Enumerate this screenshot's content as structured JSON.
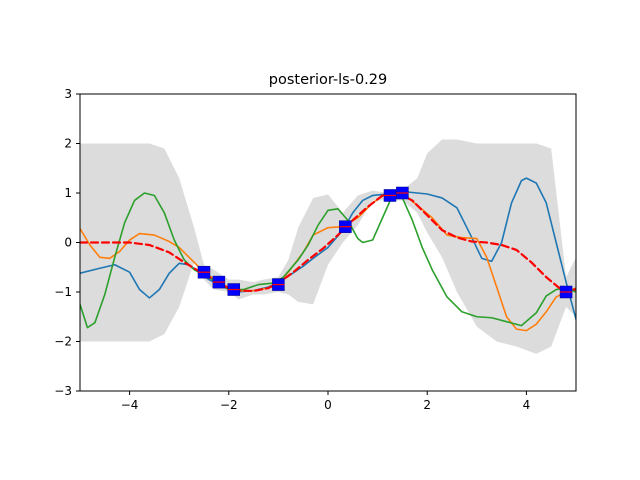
{
  "chart_data": {
    "type": "line",
    "title": "posterior-ls-0.29",
    "xlabel": "",
    "ylabel": "",
    "xlim": [
      -5,
      5
    ],
    "ylim": [
      -3,
      3
    ],
    "x_ticks": [
      -4,
      -2,
      0,
      2,
      4
    ],
    "x_tick_labels": [
      "−4",
      "−2",
      "0",
      "2",
      "4"
    ],
    "y_ticks": [
      -3,
      -2,
      -1,
      0,
      1,
      2,
      3
    ],
    "y_tick_labels": [
      "−3",
      "−2",
      "−1",
      "0",
      "1",
      "2",
      "3"
    ],
    "grid": false,
    "legend": "none",
    "confidence_band": {
      "color": "#dcdcdc",
      "x": [
        -5,
        -4.5,
        -4,
        -3.6,
        -3.3,
        -3.0,
        -2.7,
        -2.5,
        -2.3,
        -2.0,
        -1.8,
        -1.5,
        -1.3,
        -1.0,
        -0.8,
        -0.6,
        -0.3,
        0.0,
        0.3,
        0.6,
        0.9,
        1.2,
        1.5,
        1.8,
        2.0,
        2.3,
        2.6,
        3.0,
        3.4,
        3.8,
        4.2,
        4.5,
        4.8,
        5.0
      ],
      "upper": [
        2.0,
        2.0,
        2.0,
        2.0,
        1.9,
        1.3,
        0.3,
        -0.45,
        -0.55,
        -0.75,
        -0.75,
        -0.8,
        -0.75,
        -0.7,
        -0.35,
        0.3,
        0.9,
        0.97,
        0.6,
        0.95,
        1.05,
        1.0,
        1.05,
        1.3,
        1.8,
        2.08,
        2.08,
        2.0,
        2.0,
        2.0,
        2.0,
        1.9,
        -0.7,
        -0.3
      ],
      "lower": [
        -2.0,
        -2.0,
        -2.0,
        -2.0,
        -1.85,
        -1.3,
        -0.4,
        -0.75,
        -0.95,
        -1.0,
        -1.15,
        -1.05,
        -1.05,
        -1.0,
        -1.05,
        -1.2,
        -1.25,
        -0.45,
        0.0,
        0.35,
        0.85,
        0.85,
        0.85,
        0.6,
        0.2,
        -0.3,
        -1.0,
        -1.7,
        -2.0,
        -2.1,
        -2.25,
        -2.1,
        -1.3,
        -1.5
      ]
    },
    "series": [
      {
        "color": "#1f77b4",
        "style": "solid",
        "x": [
          -5,
          -4.6,
          -4.3,
          -4.0,
          -3.8,
          -3.6,
          -3.4,
          -3.2,
          -3.0,
          -2.8,
          -2.6,
          -2.4,
          -2.2,
          -2.0,
          -1.8,
          -1.5,
          -1.2,
          -1.0,
          -0.8,
          -0.5,
          -0.3,
          0.0,
          0.3,
          0.5,
          0.7,
          0.9,
          1.2,
          1.5,
          1.8,
          2.0,
          2.3,
          2.6,
          2.9,
          3.1,
          3.3,
          3.5,
          3.7,
          3.9,
          4.0,
          4.2,
          4.4,
          4.6,
          4.8,
          5.0
        ],
        "y": [
          -0.62,
          -0.52,
          -0.45,
          -0.6,
          -0.95,
          -1.12,
          -0.95,
          -0.62,
          -0.42,
          -0.45,
          -0.6,
          -0.75,
          -0.85,
          -0.95,
          -1.0,
          -0.97,
          -0.9,
          -0.8,
          -0.68,
          -0.48,
          -0.32,
          -0.1,
          0.25,
          0.6,
          0.85,
          0.95,
          0.98,
          1.03,
          1.0,
          0.98,
          0.9,
          0.7,
          0.1,
          -0.32,
          -0.38,
          0.0,
          0.8,
          1.25,
          1.3,
          1.2,
          0.8,
          0.0,
          -0.8,
          -1.55
        ]
      },
      {
        "color": "#ff7f0e",
        "style": "solid",
        "x": [
          -5,
          -4.8,
          -4.6,
          -4.4,
          -4.2,
          -4.0,
          -3.8,
          -3.5,
          -3.2,
          -3.0,
          -2.8,
          -2.5,
          -2.2,
          -2.0,
          -1.8,
          -1.5,
          -1.2,
          -1.0,
          -0.8,
          -0.5,
          -0.3,
          0.0,
          0.3,
          0.6,
          0.9,
          1.2,
          1.5,
          1.8,
          2.1,
          2.4,
          2.7,
          3.0,
          3.2,
          3.4,
          3.6,
          3.8,
          4.0,
          4.2,
          4.4,
          4.6,
          4.8,
          5.0
        ],
        "y": [
          0.28,
          -0.05,
          -0.3,
          -0.32,
          -0.18,
          0.05,
          0.18,
          0.15,
          0.02,
          -0.1,
          -0.3,
          -0.6,
          -0.8,
          -0.95,
          -0.98,
          -0.97,
          -0.92,
          -0.82,
          -0.6,
          -0.2,
          0.15,
          0.3,
          0.32,
          0.5,
          0.8,
          1.0,
          1.0,
          0.75,
          0.5,
          0.15,
          0.1,
          0.08,
          -0.3,
          -0.9,
          -1.5,
          -1.75,
          -1.78,
          -1.65,
          -1.4,
          -1.1,
          -1.0,
          -0.92
        ]
      },
      {
        "color": "#2ca02c",
        "style": "solid",
        "x": [
          -5,
          -4.85,
          -4.7,
          -4.5,
          -4.3,
          -4.1,
          -3.9,
          -3.7,
          -3.5,
          -3.3,
          -3.1,
          -2.9,
          -2.7,
          -2.5,
          -2.2,
          -2.0,
          -1.7,
          -1.4,
          -1.1,
          -0.9,
          -0.6,
          -0.4,
          -0.2,
          0.0,
          0.2,
          0.4,
          0.6,
          0.7,
          0.9,
          1.1,
          1.3,
          1.5,
          1.7,
          1.9,
          2.1,
          2.4,
          2.7,
          3.0,
          3.3,
          3.6,
          3.9,
          4.2,
          4.4,
          4.6,
          4.8,
          5.0
        ],
        "y": [
          -1.25,
          -1.72,
          -1.62,
          -1.05,
          -0.3,
          0.4,
          0.85,
          1.0,
          0.95,
          0.6,
          0.05,
          -0.35,
          -0.55,
          -0.65,
          -0.82,
          -0.95,
          -0.95,
          -0.85,
          -0.82,
          -0.7,
          -0.35,
          -0.05,
          0.35,
          0.65,
          0.68,
          0.45,
          0.08,
          0.0,
          0.05,
          0.5,
          0.95,
          0.9,
          0.45,
          -0.1,
          -0.55,
          -1.1,
          -1.4,
          -1.5,
          -1.52,
          -1.6,
          -1.68,
          -1.42,
          -1.08,
          -0.95,
          -0.92,
          -1.0
        ]
      },
      {
        "color": "#ff0000",
        "style": "dashed",
        "x": [
          -5,
          -4.5,
          -4.0,
          -3.6,
          -3.2,
          -2.9,
          -2.6,
          -2.4,
          -2.2,
          -2.0,
          -1.8,
          -1.5,
          -1.2,
          -1.0,
          -0.7,
          -0.4,
          -0.1,
          0.2,
          0.5,
          0.8,
          1.1,
          1.4,
          1.7,
          2.0,
          2.3,
          2.6,
          2.9,
          3.2,
          3.5,
          3.8,
          4.1,
          4.4,
          4.7,
          5.0
        ],
        "y": [
          0.0,
          0.0,
          0.0,
          -0.05,
          -0.2,
          -0.4,
          -0.58,
          -0.7,
          -0.82,
          -0.92,
          -0.97,
          -0.98,
          -0.92,
          -0.82,
          -0.6,
          -0.35,
          -0.12,
          0.15,
          0.45,
          0.72,
          0.95,
          1.0,
          0.85,
          0.55,
          0.25,
          0.1,
          0.02,
          0.0,
          -0.05,
          -0.15,
          -0.4,
          -0.7,
          -0.95,
          -0.95
        ]
      }
    ],
    "observations": {
      "color": "#0000ff",
      "marker": "square",
      "x": [
        -2.5,
        -2.2,
        -1.9,
        -1.0,
        0.35,
        1.25,
        1.5,
        4.8
      ],
      "y": [
        -0.6,
        -0.8,
        -0.95,
        -0.85,
        0.32,
        0.95,
        1.0,
        -1.0
      ]
    }
  }
}
